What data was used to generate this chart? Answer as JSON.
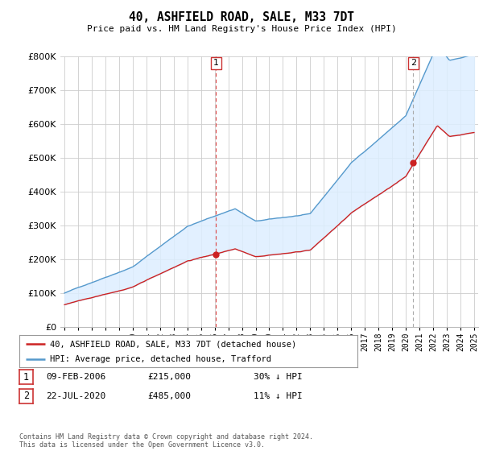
{
  "title": "40, ASHFIELD ROAD, SALE, M33 7DT",
  "subtitle": "Price paid vs. HM Land Registry's House Price Index (HPI)",
  "ylim": [
    0,
    800000
  ],
  "yticks": [
    0,
    100000,
    200000,
    300000,
    400000,
    500000,
    600000,
    700000,
    800000
  ],
  "background_color": "#ffffff",
  "plot_bg_color": "#ffffff",
  "hpi_color": "#5599cc",
  "price_color": "#cc2222",
  "fill_color": "#ddeeff",
  "vline1_color": "#dd4444",
  "vline1_style": "dashed",
  "vline2_color": "#aaaaaa",
  "vline2_style": "dashed",
  "grid_color": "#cccccc",
  "legend_entry1": "40, ASHFIELD ROAD, SALE, M33 7DT (detached house)",
  "legend_entry2": "HPI: Average price, detached house, Trafford",
  "annotation1_date": "09-FEB-2006",
  "annotation1_price": "£215,000",
  "annotation1_hpi": "30% ↓ HPI",
  "annotation2_date": "22-JUL-2020",
  "annotation2_price": "£485,000",
  "annotation2_hpi": "11% ↓ HPI",
  "footer": "Contains HM Land Registry data © Crown copyright and database right 2024.\nThis data is licensed under the Open Government Licence v3.0.",
  "sale1_year": 2006.1,
  "sale1_price": 215000,
  "sale2_year": 2020.55,
  "sale2_price": 485000,
  "year_start": 1995,
  "year_end": 2025
}
